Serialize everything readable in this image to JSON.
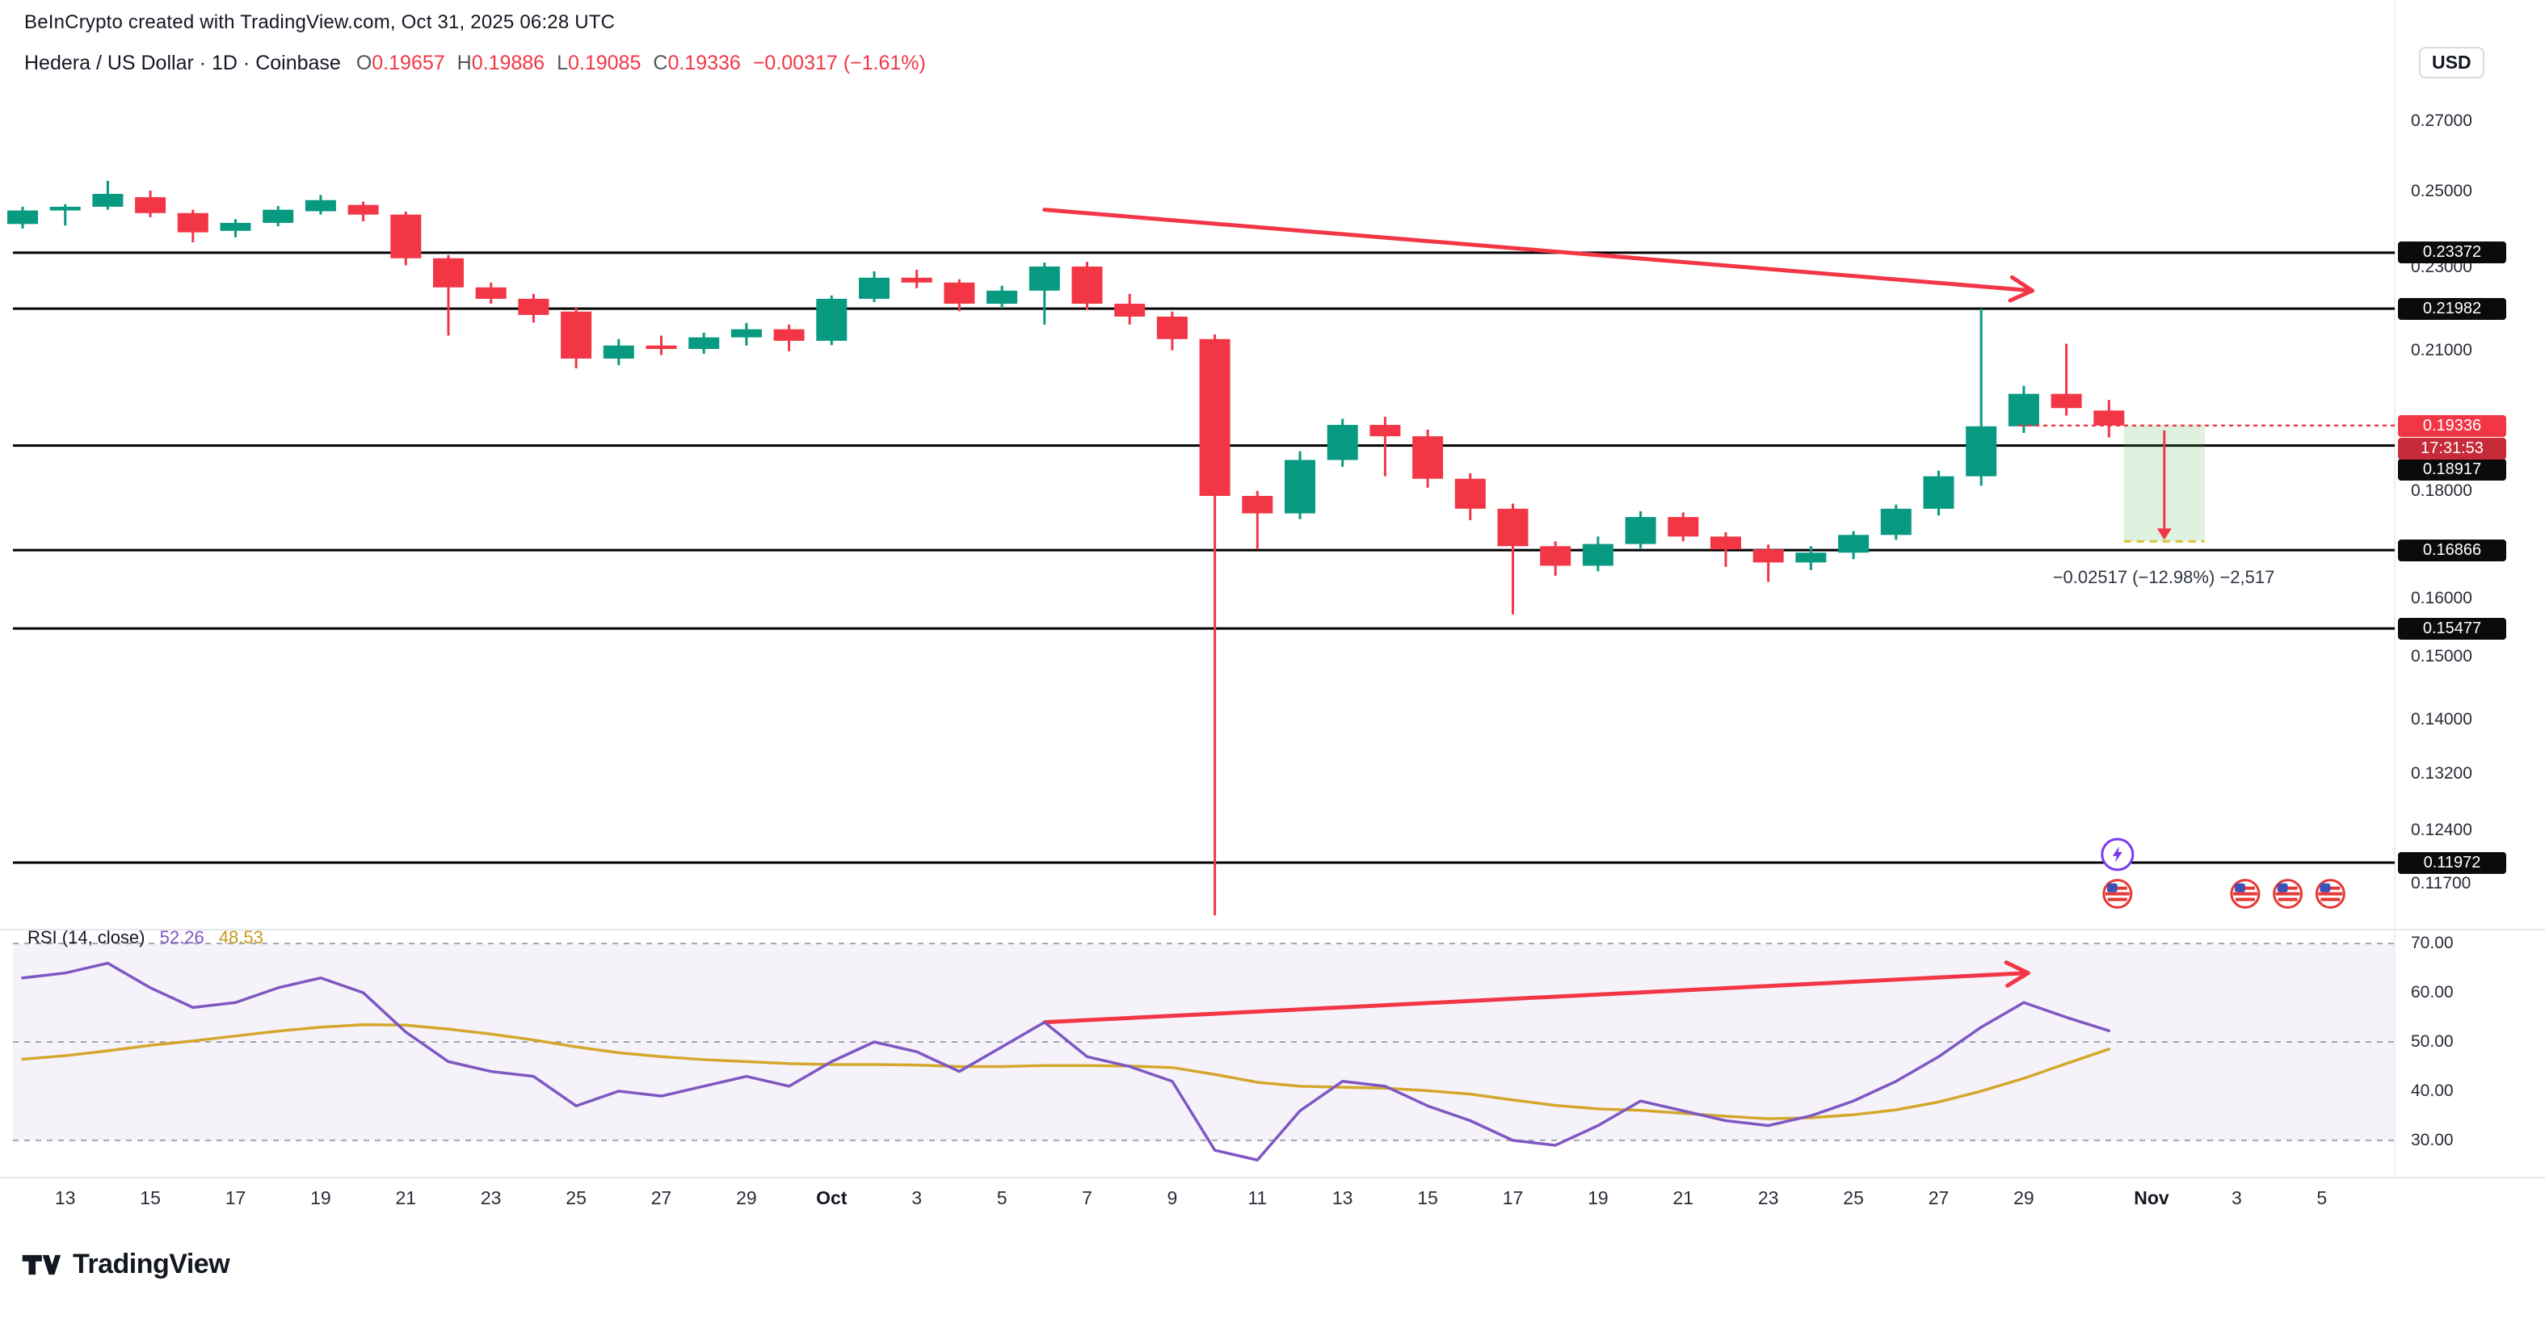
{
  "credit": "BeInCrypto created with TradingView.com, Oct 31, 2025 06:28 UTC",
  "symbol": {
    "title": "Hedera / US Dollar · 1D · Coinbase",
    "o_label": "O",
    "o": "0.19657",
    "h_label": "H",
    "h": "0.19886",
    "l_label": "L",
    "l": "0.19085",
    "c_label": "C",
    "c": "0.19336",
    "change": "−0.00317 (−1.61%)"
  },
  "axis_currency": "USD",
  "colors": {
    "up": "#089981",
    "down": "#F23645",
    "accent_red": "#F23645",
    "sr_line": "#000000",
    "rsi": "#7E57C2",
    "rsi_ma": "#D4A72C",
    "band": "rgba(126,87,194,0.08)"
  },
  "price_axis": {
    "plain_ticks": [
      {
        "label": "0.27000",
        "price": 0.27
      },
      {
        "label": "0.25000",
        "price": 0.25
      },
      {
        "label": "0.23000",
        "price": 0.23
      },
      {
        "label": "0.21000",
        "price": 0.21
      },
      {
        "label": "0.18000",
        "price": 0.18
      },
      {
        "label": "0.16000",
        "price": 0.16
      },
      {
        "label": "0.15000",
        "price": 0.15
      },
      {
        "label": "0.14000",
        "price": 0.14
      },
      {
        "label": "0.13200",
        "price": 0.132
      },
      {
        "label": "0.12400",
        "price": 0.124
      },
      {
        "label": "0.11700",
        "price": 0.117
      }
    ],
    "sr_levels": [
      {
        "label": "0.23372",
        "price": 0.23372
      },
      {
        "label": "0.21982",
        "price": 0.21982
      },
      {
        "label": "0.18917",
        "price": 0.18917,
        "shift": 30
      },
      {
        "label": "0.16866",
        "price": 0.16866
      },
      {
        "label": "0.15477",
        "price": 0.15477
      },
      {
        "label": "0.11972",
        "price": 0.11972
      }
    ],
    "current": {
      "label": "0.19336",
      "countdown": "17:31:53"
    }
  },
  "x_axis": {
    "labels": [
      {
        "text": "13",
        "i": 1
      },
      {
        "text": "15",
        "i": 3
      },
      {
        "text": "17",
        "i": 5
      },
      {
        "text": "19",
        "i": 7
      },
      {
        "text": "21",
        "i": 9
      },
      {
        "text": "23",
        "i": 11
      },
      {
        "text": "25",
        "i": 13
      },
      {
        "text": "27",
        "i": 15
      },
      {
        "text": "29",
        "i": 17
      },
      {
        "text": "Oct",
        "i": 19,
        "bold": true
      },
      {
        "text": "3",
        "i": 21
      },
      {
        "text": "5",
        "i": 23
      },
      {
        "text": "7",
        "i": 25
      },
      {
        "text": "9",
        "i": 27
      },
      {
        "text": "11",
        "i": 29
      },
      {
        "text": "13",
        "i": 31
      },
      {
        "text": "15",
        "i": 33
      },
      {
        "text": "17",
        "i": 35
      },
      {
        "text": "19",
        "i": 37
      },
      {
        "text": "21",
        "i": 39
      },
      {
        "text": "23",
        "i": 41
      },
      {
        "text": "25",
        "i": 43
      },
      {
        "text": "27",
        "i": 45
      },
      {
        "text": "29",
        "i": 47
      },
      {
        "text": "Nov",
        "i": 50,
        "bold": true
      },
      {
        "text": "3",
        "i": 52
      },
      {
        "text": "5",
        "i": 54
      }
    ]
  },
  "rsi": {
    "legend": "RSI (14, close)",
    "value": "52.26",
    "ma_value": "48.53",
    "axis_ticks": [
      {
        "label": "70.00",
        "value": 70
      },
      {
        "label": "60.00",
        "value": 60
      },
      {
        "label": "50.00",
        "value": 50
      },
      {
        "label": "40.00",
        "value": 40
      },
      {
        "label": "30.00",
        "value": 30
      }
    ]
  },
  "projection": {
    "label": "−0.02517 (−12.98%) −2,517"
  },
  "footer": {
    "brand": "TradingView"
  },
  "chart_data": {
    "type": "candlestick",
    "symbol": "HBAR/USD",
    "interval": "1D",
    "exchange": "Coinbase",
    "scale": "log",
    "current_price": 0.19336,
    "sr_levels": [
      0.23372,
      0.21982,
      0.18917,
      0.16866,
      0.15477,
      0.11972
    ],
    "candles": [
      {
        "d": "Sep 12",
        "o": 0.2412,
        "h": 0.2458,
        "l": 0.24,
        "c": 0.2448
      },
      {
        "d": "Sep 13",
        "o": 0.2448,
        "h": 0.2465,
        "l": 0.2408,
        "c": 0.2458
      },
      {
        "d": "Sep 14",
        "o": 0.2458,
        "h": 0.2529,
        "l": 0.245,
        "c": 0.2493
      },
      {
        "d": "Sep 15",
        "o": 0.2484,
        "h": 0.2502,
        "l": 0.243,
        "c": 0.2441
      },
      {
        "d": "Sep 16",
        "o": 0.2441,
        "h": 0.245,
        "l": 0.2364,
        "c": 0.239
      },
      {
        "d": "Sep 17",
        "o": 0.2394,
        "h": 0.2425,
        "l": 0.2377,
        "c": 0.2415
      },
      {
        "d": "Sep 18",
        "o": 0.2415,
        "h": 0.246,
        "l": 0.2406,
        "c": 0.245
      },
      {
        "d": "Sep 19",
        "o": 0.2446,
        "h": 0.249,
        "l": 0.2437,
        "c": 0.2476
      },
      {
        "d": "Sep 20",
        "o": 0.2463,
        "h": 0.2472,
        "l": 0.2419,
        "c": 0.2437
      },
      {
        "d": "Sep 21",
        "o": 0.2437,
        "h": 0.2445,
        "l": 0.2305,
        "c": 0.2323
      },
      {
        "d": "Sep 22",
        "o": 0.2323,
        "h": 0.2331,
        "l": 0.2134,
        "c": 0.225
      },
      {
        "d": "Sep 23",
        "o": 0.225,
        "h": 0.2262,
        "l": 0.221,
        "c": 0.2222
      },
      {
        "d": "Sep 24",
        "o": 0.2222,
        "h": 0.2234,
        "l": 0.2165,
        "c": 0.2183
      },
      {
        "d": "Sep 25",
        "o": 0.2191,
        "h": 0.2202,
        "l": 0.2059,
        "c": 0.2081
      },
      {
        "d": "Sep 26",
        "o": 0.2081,
        "h": 0.2126,
        "l": 0.2066,
        "c": 0.2111
      },
      {
        "d": "Sep 27",
        "o": 0.2111,
        "h": 0.2134,
        "l": 0.2089,
        "c": 0.2103
      },
      {
        "d": "Sep 28",
        "o": 0.2103,
        "h": 0.2141,
        "l": 0.2092,
        "c": 0.213
      },
      {
        "d": "Sep 29",
        "o": 0.213,
        "h": 0.2164,
        "l": 0.2111,
        "c": 0.2149
      },
      {
        "d": "Sep 30",
        "o": 0.2149,
        "h": 0.216,
        "l": 0.2098,
        "c": 0.2122
      },
      {
        "d": "Oct 1",
        "o": 0.2122,
        "h": 0.223,
        "l": 0.2112,
        "c": 0.2222
      },
      {
        "d": "Oct 2",
        "o": 0.2222,
        "h": 0.229,
        "l": 0.2214,
        "c": 0.2274
      },
      {
        "d": "Oct 3",
        "o": 0.2274,
        "h": 0.2294,
        "l": 0.2248,
        "c": 0.2262
      },
      {
        "d": "Oct 4",
        "o": 0.2262,
        "h": 0.227,
        "l": 0.2192,
        "c": 0.221
      },
      {
        "d": "Oct 5",
        "o": 0.221,
        "h": 0.2254,
        "l": 0.2199,
        "c": 0.2242
      },
      {
        "d": "Oct 6",
        "o": 0.2242,
        "h": 0.2312,
        "l": 0.216,
        "c": 0.2302
      },
      {
        "d": "Oct 7",
        "o": 0.2302,
        "h": 0.2314,
        "l": 0.2195,
        "c": 0.221
      },
      {
        "d": "Oct 8",
        "o": 0.221,
        "h": 0.2234,
        "l": 0.216,
        "c": 0.2179
      },
      {
        "d": "Oct 9",
        "o": 0.2179,
        "h": 0.2191,
        "l": 0.21,
        "c": 0.2126
      },
      {
        "d": "Oct 10",
        "o": 0.2126,
        "h": 0.2137,
        "l": 0.113,
        "c": 0.179
      },
      {
        "d": "Oct 11",
        "o": 0.179,
        "h": 0.18,
        "l": 0.1688,
        "c": 0.1756
      },
      {
        "d": "Oct 12",
        "o": 0.1756,
        "h": 0.188,
        "l": 0.1745,
        "c": 0.1862
      },
      {
        "d": "Oct 13",
        "o": 0.1862,
        "h": 0.1948,
        "l": 0.1848,
        "c": 0.1935
      },
      {
        "d": "Oct 14",
        "o": 0.1935,
        "h": 0.1952,
        "l": 0.1829,
        "c": 0.1911
      },
      {
        "d": "Oct 15",
        "o": 0.1911,
        "h": 0.1925,
        "l": 0.1806,
        "c": 0.1824
      },
      {
        "d": "Oct 16",
        "o": 0.1824,
        "h": 0.1835,
        "l": 0.1743,
        "c": 0.1765
      },
      {
        "d": "Oct 17",
        "o": 0.1765,
        "h": 0.1775,
        "l": 0.1572,
        "c": 0.1694
      },
      {
        "d": "Oct 18",
        "o": 0.1694,
        "h": 0.1703,
        "l": 0.164,
        "c": 0.1658
      },
      {
        "d": "Oct 19",
        "o": 0.1658,
        "h": 0.1712,
        "l": 0.1648,
        "c": 0.1698
      },
      {
        "d": "Oct 20",
        "o": 0.1698,
        "h": 0.176,
        "l": 0.169,
        "c": 0.1749
      },
      {
        "d": "Oct 21",
        "o": 0.1749,
        "h": 0.1758,
        "l": 0.1703,
        "c": 0.1712
      },
      {
        "d": "Oct 22",
        "o": 0.1712,
        "h": 0.172,
        "l": 0.1656,
        "c": 0.1688
      },
      {
        "d": "Oct 23",
        "o": 0.1688,
        "h": 0.1697,
        "l": 0.1629,
        "c": 0.1664
      },
      {
        "d": "Oct 24",
        "o": 0.1664,
        "h": 0.1694,
        "l": 0.165,
        "c": 0.1682
      },
      {
        "d": "Oct 25",
        "o": 0.1682,
        "h": 0.1722,
        "l": 0.167,
        "c": 0.1715
      },
      {
        "d": "Oct 26",
        "o": 0.1715,
        "h": 0.1773,
        "l": 0.1706,
        "c": 0.1765
      },
      {
        "d": "Oct 27",
        "o": 0.1765,
        "h": 0.184,
        "l": 0.1752,
        "c": 0.1829
      },
      {
        "d": "Oct 28",
        "o": 0.1829,
        "h": 0.2198,
        "l": 0.181,
        "c": 0.1932
      },
      {
        "d": "Oct 29",
        "o": 0.1932,
        "h": 0.202,
        "l": 0.1918,
        "c": 0.2002
      },
      {
        "d": "Oct 30",
        "o": 0.2002,
        "h": 0.2115,
        "l": 0.1955,
        "c": 0.1971
      },
      {
        "d": "Oct 31",
        "o": 0.19657,
        "h": 0.19886,
        "l": 0.19085,
        "c": 0.19336
      }
    ],
    "projection": {
      "start_day": 49.35,
      "end_day": 51.25,
      "from_price": 0.19336,
      "to_price": 0.1703,
      "change": "−0.02517",
      "percent": "−12.98%",
      "ticks": "−2,517"
    },
    "arrows": [
      {
        "pane": "price",
        "x1_day": 24,
        "y1_price": 0.245,
        "x2_day": 47.2,
        "y2_price": 0.2242
      },
      {
        "pane": "rsi",
        "x1_day": 24,
        "y1_value": 54,
        "x2_day": 47.1,
        "y2_value": 64
      }
    ],
    "markers": {
      "lightning_day": 49.2,
      "lightning_price": 0.1208,
      "flag_days": [
        49.2,
        52.2,
        53.2,
        54.2
      ],
      "flag_price": 0.1157
    },
    "rsi": {
      "period": 14,
      "levels": [
        70,
        50,
        30
      ],
      "values": [
        63,
        64,
        66,
        61,
        57,
        58,
        61,
        63,
        60,
        52,
        46,
        44,
        43,
        37,
        40,
        39,
        41,
        43,
        41,
        46,
        50,
        48,
        44,
        49,
        54,
        47,
        45,
        42,
        28,
        26,
        36,
        42,
        41,
        37,
        34,
        30,
        29,
        33,
        38,
        36,
        34,
        33,
        35,
        38,
        42,
        47,
        53,
        58,
        55,
        52.26
      ],
      "ma": [
        46.5,
        47.2,
        48.2,
        49.3,
        50.2,
        51.2,
        52.2,
        53.0,
        53.5,
        53.4,
        52.6,
        51.6,
        50.4,
        49.0,
        47.8,
        47.0,
        46.4,
        46.0,
        45.6,
        45.4,
        45.4,
        45.3,
        45.0,
        45.0,
        45.2,
        45.2,
        45.1,
        44.8,
        43.4,
        41.8,
        41.0,
        40.8,
        40.6,
        40.1,
        39.4,
        38.2,
        37.1,
        36.4,
        36.1,
        35.5,
        34.9,
        34.4,
        34.6,
        35.2,
        36.2,
        37.8,
        40.0,
        42.6,
        45.6,
        48.53
      ]
    }
  }
}
